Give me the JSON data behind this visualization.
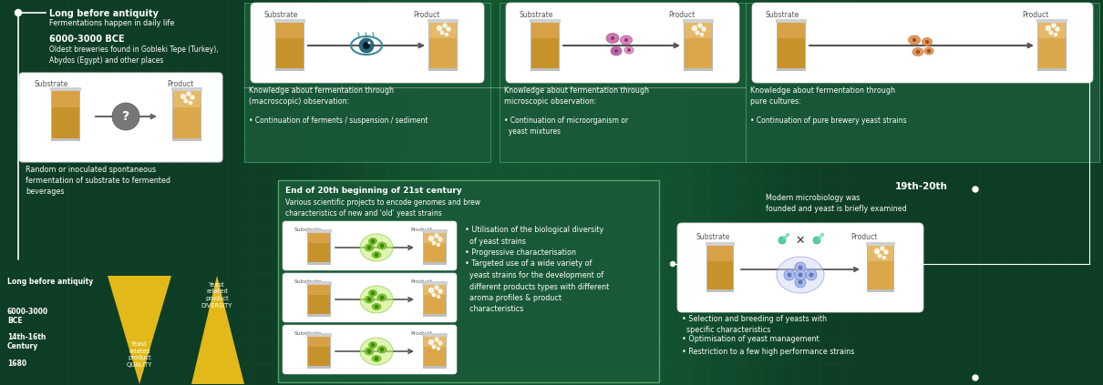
{
  "bg_dark": "#0e3d25",
  "bg_mid": "#1a5c3a",
  "bg_light": "#256b45",
  "grid_color": "#2a7a50",
  "white": "#ffffff",
  "yellow": "#f5c518",
  "panel_white": "#f5f5f5",
  "section1_title": "Long before antiquity",
  "section1_sub": "Fermentations happen in daily life",
  "section1_date": "6000-3000 BCE",
  "section1_desc": "Oldest breweries found in Gobleki Tepe (Turkey),\nAbydos (Egypt) and other places",
  "section1_caption": "Random or inoculated spontaneous\nfermentation of substrate to fermented\nbeverages",
  "section2_title": "Knowledge about fermentation through\n(macroscopic) observation:",
  "section2_bullet": "• Continuation of ferments / suspension / sediment",
  "section3_title": "Knowledge about fermentation through\nmicroscopic observation:",
  "section3_bullet": "• Continuation of microorganism or\n  yeast mixtures",
  "section4_title": "Knowledge about fermentation through\npure cultures:",
  "section4_bullet": "• Continuation of pure brewery yeast strains",
  "section5_title": "End of 20th beginning of 21st century",
  "section5_sub": "Various scientific projects to encode genomes and brew\ncharacteristics of new and 'old' yeast strains",
  "section5_bullets": "• Utilisation of the biological diversity\n  of yeast strains\n• Progressive characterisation\n• Targeted use of a wide variety of\n  yeast strains for the development of\n  different products types with different\n  aroma profiles & product\n  characteristics",
  "section6_title": "19th-20th",
  "section6_sub": "Modern microbiology was\nfounded and yeast is briefly examined",
  "section6_b1": "• Selection and breeding of yeasts with\n  specific characteristics",
  "section6_b2": "• Optimisation of yeast management",
  "section6_b3": "• Restriction to a few high performance strains",
  "tl_labels": [
    "Long before antiquity",
    "6000-3000\nBCE",
    "14th-16th\nCentury",
    "1680"
  ],
  "tri1_label": "Yeast\nrelated\nproduct\nQUALITY",
  "tri2_label": "Yeast\nrelated\nproduct\nDIVERSITY",
  "beaker_amber": "#c8922a",
  "beaker_light": "#daa84b",
  "beaker_rim": "#c8c8c8",
  "beaker_body_border": "#a07820"
}
